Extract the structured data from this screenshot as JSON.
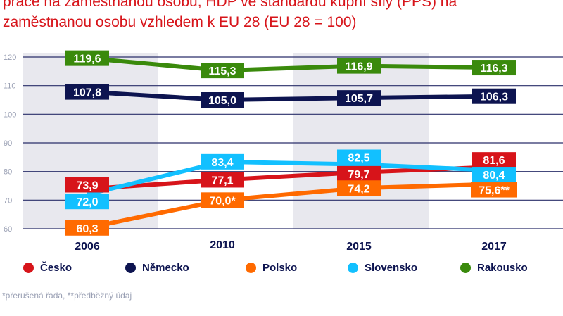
{
  "title_lines": [
    "práce na zaměstnanou osobu, HDP ve standardu kupní síly (PPS) na",
    "zaměstnanou osobu vzhledem k EU 28 (EU 28 = 100)"
  ],
  "chart_data": {
    "type": "line",
    "categories": [
      "2006",
      "2010",
      "2015",
      "2017"
    ],
    "ylim": [
      60,
      120
    ],
    "yticks": [
      60,
      70,
      80,
      90,
      100,
      110,
      120
    ],
    "grid": true,
    "legend_placement": "bottom",
    "series": [
      {
        "name": "Česko",
        "color": "#d7141a",
        "values": [
          73.9,
          77.1,
          79.7,
          81.6
        ],
        "labels": [
          "73,9",
          "77,1",
          "79,7",
          "81,6"
        ]
      },
      {
        "name": "Německo",
        "color": "#0d1450",
        "values": [
          107.8,
          105.0,
          105.7,
          106.3
        ],
        "labels": [
          "107,8",
          "105,0",
          "105,7",
          "106,3"
        ]
      },
      {
        "name": "Polsko",
        "color": "#ff6a00",
        "values": [
          60.3,
          70.0,
          74.2,
          75.6
        ],
        "labels": [
          "60,3",
          "70,0*",
          "74,2",
          "75,6**"
        ]
      },
      {
        "name": "Slovensko",
        "color": "#12c0ff",
        "values": [
          72.0,
          83.4,
          82.5,
          80.4
        ],
        "labels": [
          "72,0",
          "83,4",
          "82,5",
          "80,4"
        ]
      },
      {
        "name": "Rakousko",
        "color": "#3a8a0c",
        "values": [
          119.6,
          115.3,
          116.9,
          116.3
        ],
        "labels": [
          "119,6",
          "115,3",
          "116,9",
          "116,3"
        ]
      }
    ]
  },
  "footnote": "*přerušená řada, **předběžný údaj"
}
